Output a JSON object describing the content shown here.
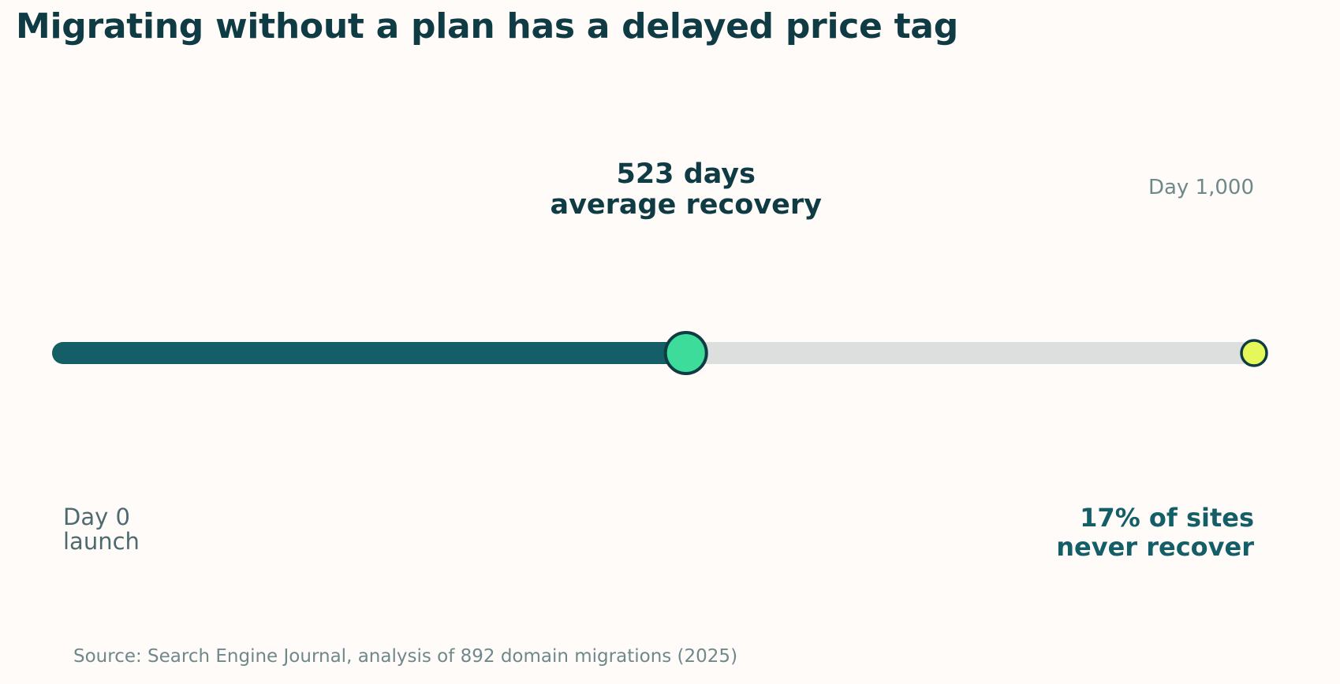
{
  "chart_data": {
    "type": "timeline",
    "title": "Migrating without a plan has a delayed price tag",
    "axis": {
      "min": 0,
      "max": 1000
    },
    "progress_value": 523,
    "annotations": {
      "marker": {
        "value": 523,
        "line1": "523 days",
        "line2": "average recovery"
      },
      "start": {
        "value": 0,
        "line1": "Day 0",
        "line2": "launch"
      },
      "end_top": {
        "value": 1000,
        "text": "Day 1,000"
      },
      "end_bottom": {
        "value": 1000,
        "line1": "17% of sites",
        "line2": "never recover"
      }
    },
    "source": "Source: Search Engine Journal, analysis of 892 domain migrations (2025)"
  },
  "colors": {
    "background": "#fffbf8",
    "filled_track": "#135e67",
    "empty_track": "#dcdfdd",
    "marker_fill": "#3ddc9b",
    "end_marker_fill": "#e4f85a",
    "outline": "#0f3b45",
    "dark_text": "#0f3b45",
    "teal_text": "#135e67",
    "muted_text": "#4d6a70",
    "light_text": "#6f888c"
  }
}
